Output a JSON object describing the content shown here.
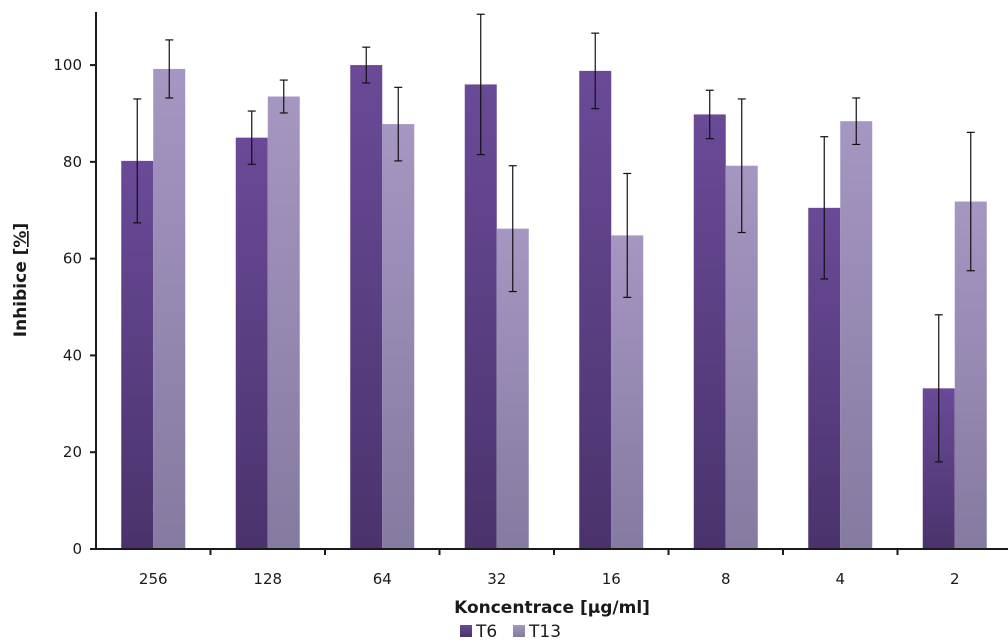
{
  "chart_data": {
    "type": "bar",
    "title": "",
    "xlabel": "Koncentrace [µg/ml]",
    "ylabel_prefix": "Inhibice ",
    "ylabel_unit": "[%]",
    "categories": [
      "256",
      "128",
      "64",
      "32",
      "16",
      "8",
      "4",
      "2"
    ],
    "ylim": [
      0,
      112
    ],
    "yticks": [
      "0",
      "20",
      "40",
      "60",
      "80",
      "100"
    ],
    "grid": false,
    "legend_position": "bottom",
    "series": [
      {
        "name": "T6",
        "color": "#5a3d85",
        "values": [
          80.2,
          85.0,
          100.0,
          96.0,
          98.8,
          89.8,
          70.5,
          33.2
        ],
        "errors": [
          12.8,
          5.5,
          3.7,
          14.5,
          7.8,
          5.0,
          14.7,
          15.2
        ]
      },
      {
        "name": "T13",
        "color": "#9c8db7",
        "values": [
          99.2,
          93.5,
          87.8,
          66.2,
          64.8,
          79.2,
          88.4,
          71.8
        ],
        "errors": [
          6.0,
          3.4,
          7.6,
          13.0,
          12.8,
          13.8,
          4.8,
          14.3
        ]
      }
    ]
  }
}
